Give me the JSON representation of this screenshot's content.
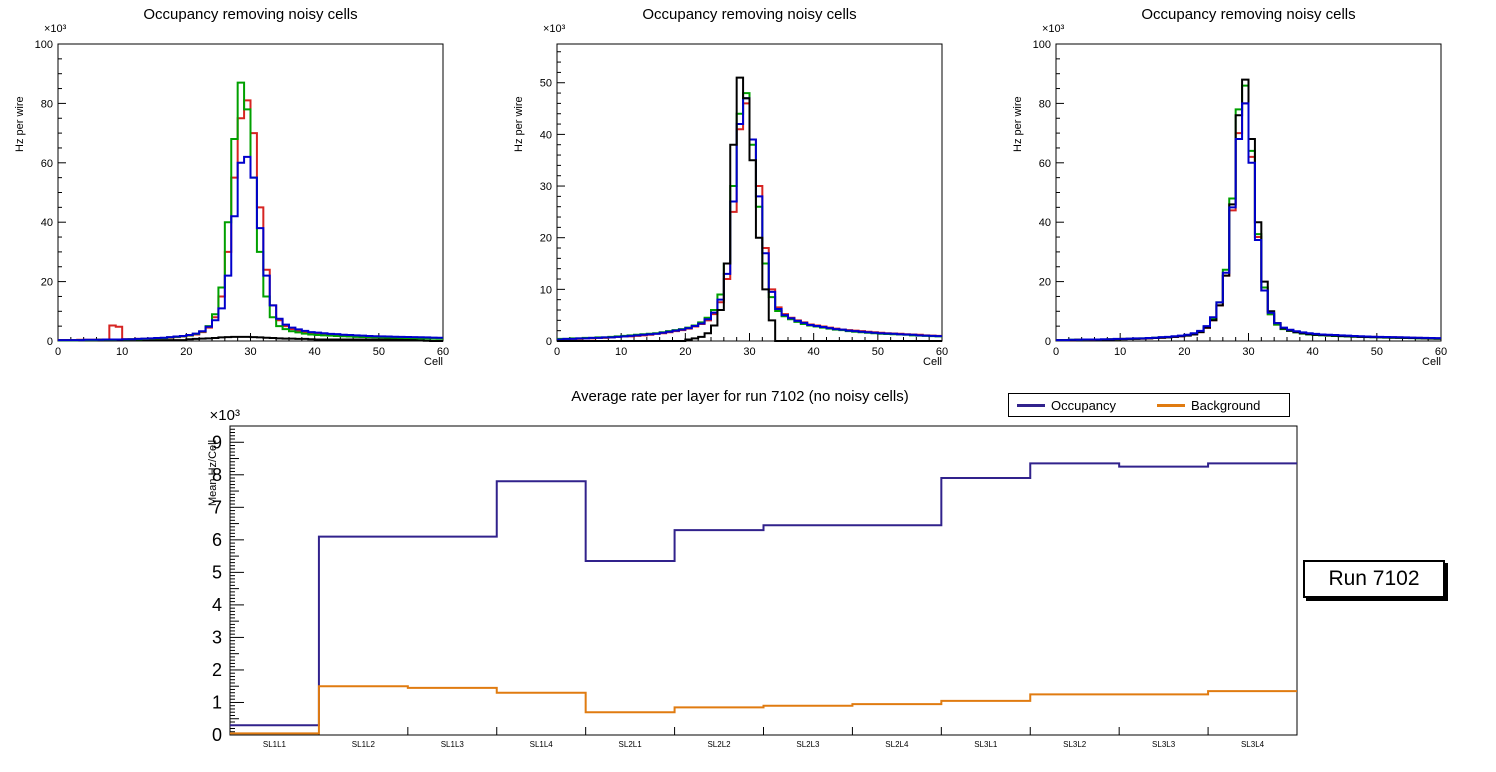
{
  "page": {
    "background": "#ffffff"
  },
  "chart_data": [
    {
      "type": "line",
      "style": "step-histogram",
      "title": "Occupancy removing noisy cells",
      "xlabel": "Cell",
      "ylabel": "Hz per wire",
      "multiplier_label": "×10³",
      "xlim": [
        0,
        60
      ],
      "ylim": [
        0,
        100
      ],
      "x_major_ticks": [
        0,
        10,
        20,
        30,
        40,
        50,
        60
      ],
      "y_major_ticks": [
        0,
        20,
        40,
        60,
        80,
        100
      ],
      "x_minor_step": 2,
      "y_minor_step": 5,
      "bins": 60,
      "grid": false,
      "series": [
        {
          "name": "black",
          "color": "#000000",
          "values": [
            0.3,
            0.3,
            0.3,
            0.3,
            0.3,
            0.3,
            0.3,
            0.3,
            0.3,
            0.3,
            0.3,
            0.3,
            0.3,
            0.3,
            0.3,
            0.3,
            0.3,
            0.3,
            0.3,
            0.3,
            0.6,
            0.7,
            0.8,
            0.9,
            1.0,
            1.2,
            1.3,
            1.4,
            1.4,
            1.4,
            1.3,
            1.2,
            1.1,
            1.0,
            0.9,
            0.8,
            0.8,
            0.7,
            0.7,
            0.6,
            0.5,
            0.5,
            0.5,
            0.5,
            0.5,
            0.5,
            0.5,
            0.5,
            0.5,
            0.5,
            0.5,
            0.5,
            0.5,
            0.5,
            0.5,
            0.5,
            0.2,
            0.1,
            0,
            0
          ]
        },
        {
          "name": "red",
          "color": "#d62422",
          "values": [
            0.3,
            0.3,
            0.3,
            0.4,
            0.4,
            0.4,
            0.5,
            0.5,
            5.2,
            4.8,
            0.6,
            0.6,
            0.7,
            0.7,
            0.8,
            0.9,
            1.0,
            1.1,
            1.3,
            1.5,
            1.8,
            2.2,
            3.0,
            4.5,
            8,
            15,
            30,
            55,
            75,
            81,
            70,
            45,
            24,
            12,
            7,
            5,
            4,
            3.4,
            3.0,
            2.7,
            2.4,
            2.2,
            2.0,
            1.9,
            1.8,
            1.7,
            1.6,
            1.5,
            1.45,
            1.4,
            1.35,
            1.3,
            1.25,
            1.2,
            1.15,
            1.1,
            1.05,
            1.0,
            0.95,
            0.9
          ]
        },
        {
          "name": "green",
          "color": "#00a000",
          "values": [
            0.2,
            0.2,
            0.2,
            0.3,
            0.3,
            0.3,
            0.4,
            0.4,
            0.4,
            0.5,
            0.5,
            0.6,
            0.6,
            0.7,
            0.8,
            0.9,
            1.0,
            1.2,
            1.4,
            1.6,
            1.9,
            2.4,
            3.2,
            5,
            9,
            18,
            40,
            68,
            87,
            78,
            55,
            30,
            15,
            8,
            5,
            4,
            3.3,
            2.9,
            2.5,
            2.2,
            2.0,
            1.9,
            1.8,
            1.7,
            1.6,
            1.5,
            1.4,
            1.35,
            1.3,
            1.25,
            1.2,
            1.15,
            1.1,
            1.05,
            1.0,
            0.95,
            0.9,
            0.85,
            0.8,
            0.75
          ]
        },
        {
          "name": "blue",
          "color": "#0000cc",
          "values": [
            0.3,
            0.3,
            0.3,
            0.3,
            0.4,
            0.4,
            0.4,
            0.5,
            0.5,
            0.5,
            0.6,
            0.6,
            0.7,
            0.8,
            0.9,
            1.0,
            1.1,
            1.3,
            1.5,
            1.7,
            2.0,
            2.5,
            3.3,
            4.8,
            7,
            11,
            22,
            42,
            60,
            62,
            55,
            38,
            22,
            12,
            7.5,
            5.5,
            4.5,
            3.9,
            3.4,
            3.0,
            2.8,
            2.6,
            2.4,
            2.3,
            2.1,
            2.0,
            1.9,
            1.8,
            1.7,
            1.6,
            1.55,
            1.5,
            1.45,
            1.4,
            1.35,
            1.3,
            1.25,
            1.2,
            1.15,
            1.1
          ]
        }
      ]
    },
    {
      "type": "line",
      "style": "step-histogram",
      "title": "Occupancy removing noisy cells",
      "xlabel": "Cell",
      "ylabel": "Hz per wire",
      "multiplier_label": "×10³",
      "xlim": [
        0,
        60
      ],
      "ylim": [
        0,
        57.5
      ],
      "x_major_ticks": [
        0,
        10,
        20,
        30,
        40,
        50,
        60
      ],
      "y_major_ticks": [
        0,
        10,
        20,
        30,
        40,
        50
      ],
      "x_minor_step": 2,
      "y_minor_step": 2,
      "bins": 60,
      "grid": false,
      "series": [
        {
          "name": "red",
          "color": "#d62422",
          "values": [
            0.3,
            0.3,
            0.4,
            0.4,
            0.5,
            0.5,
            0.6,
            0.6,
            0.7,
            0.8,
            0.9,
            0.9,
            1.0,
            1.1,
            1.2,
            1.4,
            1.5,
            1.7,
            1.9,
            2.1,
            2.4,
            2.8,
            3.3,
            4.0,
            5.2,
            7.5,
            12,
            25,
            41,
            46,
            39,
            30,
            18,
            10,
            6.5,
            5.2,
            4.5,
            4.0,
            3.6,
            3.2,
            3.0,
            2.8,
            2.6,
            2.4,
            2.2,
            2.1,
            2.0,
            1.9,
            1.8,
            1.7,
            1.6,
            1.5,
            1.45,
            1.4,
            1.3,
            1.25,
            1.2,
            1.1,
            1.05,
            1.0
          ]
        },
        {
          "name": "green",
          "color": "#00a000",
          "values": [
            0.4,
            0.4,
            0.5,
            0.5,
            0.6,
            0.6,
            0.7,
            0.7,
            0.8,
            0.9,
            1.0,
            1.1,
            1.2,
            1.3,
            1.4,
            1.5,
            1.7,
            1.9,
            2.1,
            2.3,
            2.6,
            3.0,
            3.6,
            4.5,
            6,
            9,
            15,
            30,
            44,
            48,
            38,
            26,
            15,
            8.5,
            5.8,
            4.8,
            4.2,
            3.7,
            3.3,
            3.0,
            2.8,
            2.6,
            2.4,
            2.2,
            2.1,
            1.9,
            1.8,
            1.7,
            1.6,
            1.5,
            1.4,
            1.35,
            1.3,
            1.25,
            1.2,
            1.1,
            1.05,
            1.0,
            0.95,
            0.9
          ]
        },
        {
          "name": "blue",
          "color": "#0000cc",
          "values": [
            0.3,
            0.4,
            0.4,
            0.5,
            0.5,
            0.6,
            0.6,
            0.7,
            0.7,
            0.8,
            0.9,
            1.0,
            1.1,
            1.2,
            1.3,
            1.4,
            1.6,
            1.8,
            2.0,
            2.2,
            2.5,
            2.9,
            3.4,
            4.2,
            5.5,
            8,
            13,
            27,
            42,
            47,
            39,
            28,
            17,
            9.5,
            6.2,
            5.0,
            4.4,
            3.9,
            3.5,
            3.1,
            2.9,
            2.7,
            2.5,
            2.3,
            2.2,
            2.0,
            1.9,
            1.8,
            1.7,
            1.6,
            1.5,
            1.45,
            1.4,
            1.3,
            1.25,
            1.2,
            1.1,
            1.05,
            1.0,
            0.95
          ]
        },
        {
          "name": "black",
          "color": "#000000",
          "values": [
            0,
            0,
            0,
            0,
            0,
            0,
            0,
            0,
            0,
            0,
            0,
            0,
            0,
            0,
            0,
            0,
            0,
            0,
            0,
            0,
            0.3,
            0.5,
            0.8,
            1.5,
            3,
            6,
            15,
            38,
            51,
            47,
            35,
            20,
            10,
            4,
            0,
            0,
            0,
            0,
            0,
            0,
            0,
            0,
            0,
            0,
            0,
            0,
            0,
            0,
            0,
            0,
            0,
            0,
            0,
            0,
            0,
            0,
            0,
            0,
            0,
            0
          ]
        }
      ]
    },
    {
      "type": "line",
      "style": "step-histogram",
      "title": "Occupancy removing noisy cells",
      "xlabel": "Cell",
      "ylabel": "Hz per wire",
      "multiplier_label": "×10³",
      "xlim": [
        0,
        60
      ],
      "ylim": [
        0,
        100
      ],
      "x_major_ticks": [
        0,
        10,
        20,
        30,
        40,
        50,
        60
      ],
      "y_major_ticks": [
        0,
        20,
        40,
        60,
        80,
        100
      ],
      "x_minor_step": 2,
      "y_minor_step": 5,
      "bins": 60,
      "grid": false,
      "series": [
        {
          "name": "red",
          "color": "#d62422",
          "values": [
            0.3,
            0.3,
            0.3,
            0.4,
            0.4,
            0.4,
            0.5,
            0.5,
            0.6,
            0.6,
            0.7,
            0.7,
            0.8,
            0.8,
            0.9,
            1.0,
            1.1,
            1.3,
            1.4,
            1.6,
            1.9,
            2.3,
            3.0,
            4.4,
            7,
            12,
            22,
            44,
            70,
            80,
            62,
            35,
            17,
            9,
            5.5,
            4.1,
            3.5,
            3.0,
            2.7,
            2.4,
            2.2,
            2.1,
            2.0,
            1.9,
            1.8,
            1.7,
            1.6,
            1.5,
            1.45,
            1.4,
            1.35,
            1.3,
            1.25,
            1.2,
            1.15,
            1.1,
            1.05,
            1.0,
            0.95,
            0.9
          ]
        },
        {
          "name": "green",
          "color": "#00a000",
          "values": [
            0.3,
            0.3,
            0.4,
            0.4,
            0.4,
            0.5,
            0.5,
            0.5,
            0.6,
            0.6,
            0.7,
            0.7,
            0.8,
            0.9,
            1.0,
            1.1,
            1.2,
            1.3,
            1.5,
            1.7,
            2.0,
            2.4,
            3.2,
            4.8,
            7.5,
            13,
            24,
            48,
            78,
            86,
            64,
            36,
            18,
            9,
            5.5,
            4.0,
            3.4,
            2.9,
            2.5,
            2.2,
            2.0,
            1.9,
            1.8,
            1.7,
            1.6,
            1.5,
            1.45,
            1.4,
            1.3,
            1.25,
            1.2,
            1.15,
            1.1,
            1.05,
            1.0,
            0.95,
            0.9,
            0.85,
            0.8,
            0.75
          ]
        },
        {
          "name": "black",
          "color": "#000000",
          "values": [
            0.3,
            0.3,
            0.3,
            0.4,
            0.4,
            0.4,
            0.5,
            0.5,
            0.5,
            0.6,
            0.6,
            0.7,
            0.7,
            0.8,
            0.9,
            1.0,
            1.1,
            1.2,
            1.4,
            1.6,
            1.8,
            2.2,
            3.0,
            4.5,
            7,
            12,
            22,
            46,
            76,
            88,
            68,
            40,
            20,
            10,
            6,
            4.2,
            3.5,
            3.0,
            2.6,
            2.3,
            2.1,
            2.0,
            1.9,
            1.8,
            1.7,
            1.6,
            1.5,
            1.4,
            1.35,
            1.3,
            1.25,
            1.2,
            1.15,
            1.1,
            1.05,
            1.0,
            0.95,
            0.9,
            0.85,
            0.8
          ]
        },
        {
          "name": "blue",
          "color": "#0000cc",
          "values": [
            0.3,
            0.3,
            0.4,
            0.4,
            0.5,
            0.5,
            0.5,
            0.6,
            0.6,
            0.7,
            0.7,
            0.8,
            0.9,
            0.9,
            1.0,
            1.1,
            1.3,
            1.4,
            1.6,
            1.8,
            2.1,
            2.6,
            3.4,
            5,
            8,
            13,
            23,
            45,
            68,
            80,
            60,
            34,
            17,
            9.5,
            6,
            4.5,
            3.8,
            3.3,
            2.9,
            2.6,
            2.4,
            2.2,
            2.1,
            2.0,
            1.9,
            1.8,
            1.7,
            1.6,
            1.5,
            1.45,
            1.4,
            1.35,
            1.3,
            1.25,
            1.2,
            1.15,
            1.1,
            1.05,
            1.0,
            0.95
          ]
        }
      ]
    },
    {
      "type": "line",
      "style": "step-categories",
      "title": "Average rate per layer for run 7102 (no noisy cells)",
      "ylabel": "Mean Hz/Cell",
      "multiplier_label": "×10³",
      "side_label": "Run 7102",
      "categories": [
        "SL1L1",
        "SL1L2",
        "SL1L3",
        "SL1L4",
        "SL2L1",
        "SL2L2",
        "SL2L3",
        "SL2L4",
        "SL3L1",
        "SL3L2",
        "SL3L3",
        "SL3L4"
      ],
      "ylim": [
        0,
        9.5
      ],
      "y_major_ticks": [
        0,
        1,
        2,
        3,
        4,
        5,
        6,
        7,
        8,
        9
      ],
      "grid": false,
      "legend_position": "top-right",
      "series": [
        {
          "name": "Occupancy",
          "color": "#31228c",
          "values": [
            0.3,
            6.1,
            6.1,
            7.8,
            5.35,
            6.3,
            6.45,
            6.45,
            7.9,
            8.35,
            8.25,
            8.35
          ]
        },
        {
          "name": "Background",
          "color": "#e07b10",
          "values": [
            0.05,
            1.5,
            1.45,
            1.3,
            0.7,
            0.85,
            0.9,
            0.95,
            1.05,
            1.25,
            1.25,
            1.35
          ]
        }
      ]
    }
  ]
}
